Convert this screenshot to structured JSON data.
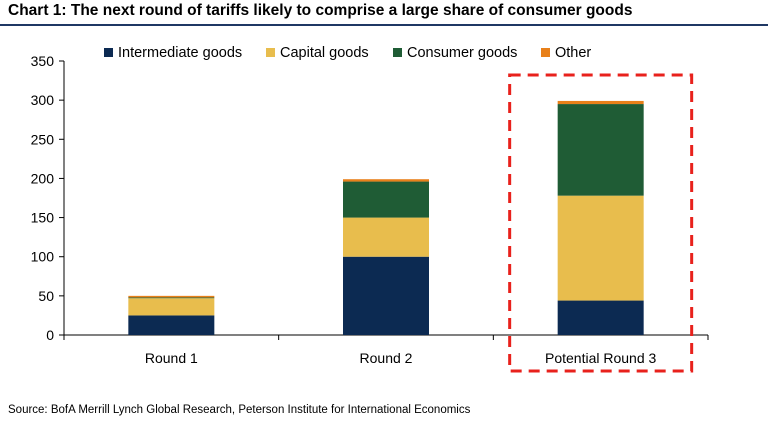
{
  "header": {
    "title": "Chart 1: The next round of tariffs likely to comprise a large share of consumer goods"
  },
  "footer": {
    "source": "Source: BofA Merrill Lynch Global Research, Peterson Institute for International Economics"
  },
  "chart_data": {
    "type": "bar",
    "stacked": true,
    "categories": [
      "Round 1",
      "Round 2",
      "Potential Round 3"
    ],
    "series": [
      {
        "name": "Intermediate goods",
        "color": "#0c2a52",
        "values": [
          25,
          100,
          44
        ]
      },
      {
        "name": "Capital goods",
        "color": "#e8bd4d",
        "values": [
          22,
          50,
          134
        ]
      },
      {
        "name": "Consumer goods",
        "color": "#1f5c35",
        "values": [
          1,
          46,
          117
        ]
      },
      {
        "name": "Other",
        "color": "#e8801a",
        "values": [
          2,
          3,
          4
        ]
      }
    ],
    "ylim": [
      0,
      350
    ],
    "yticks": [
      0,
      50,
      100,
      150,
      200,
      250,
      300,
      350
    ],
    "grid": false,
    "legend_position": "top",
    "highlight": {
      "category": "Potential Round 3",
      "style": "dashed",
      "color": "#e8211c"
    }
  }
}
